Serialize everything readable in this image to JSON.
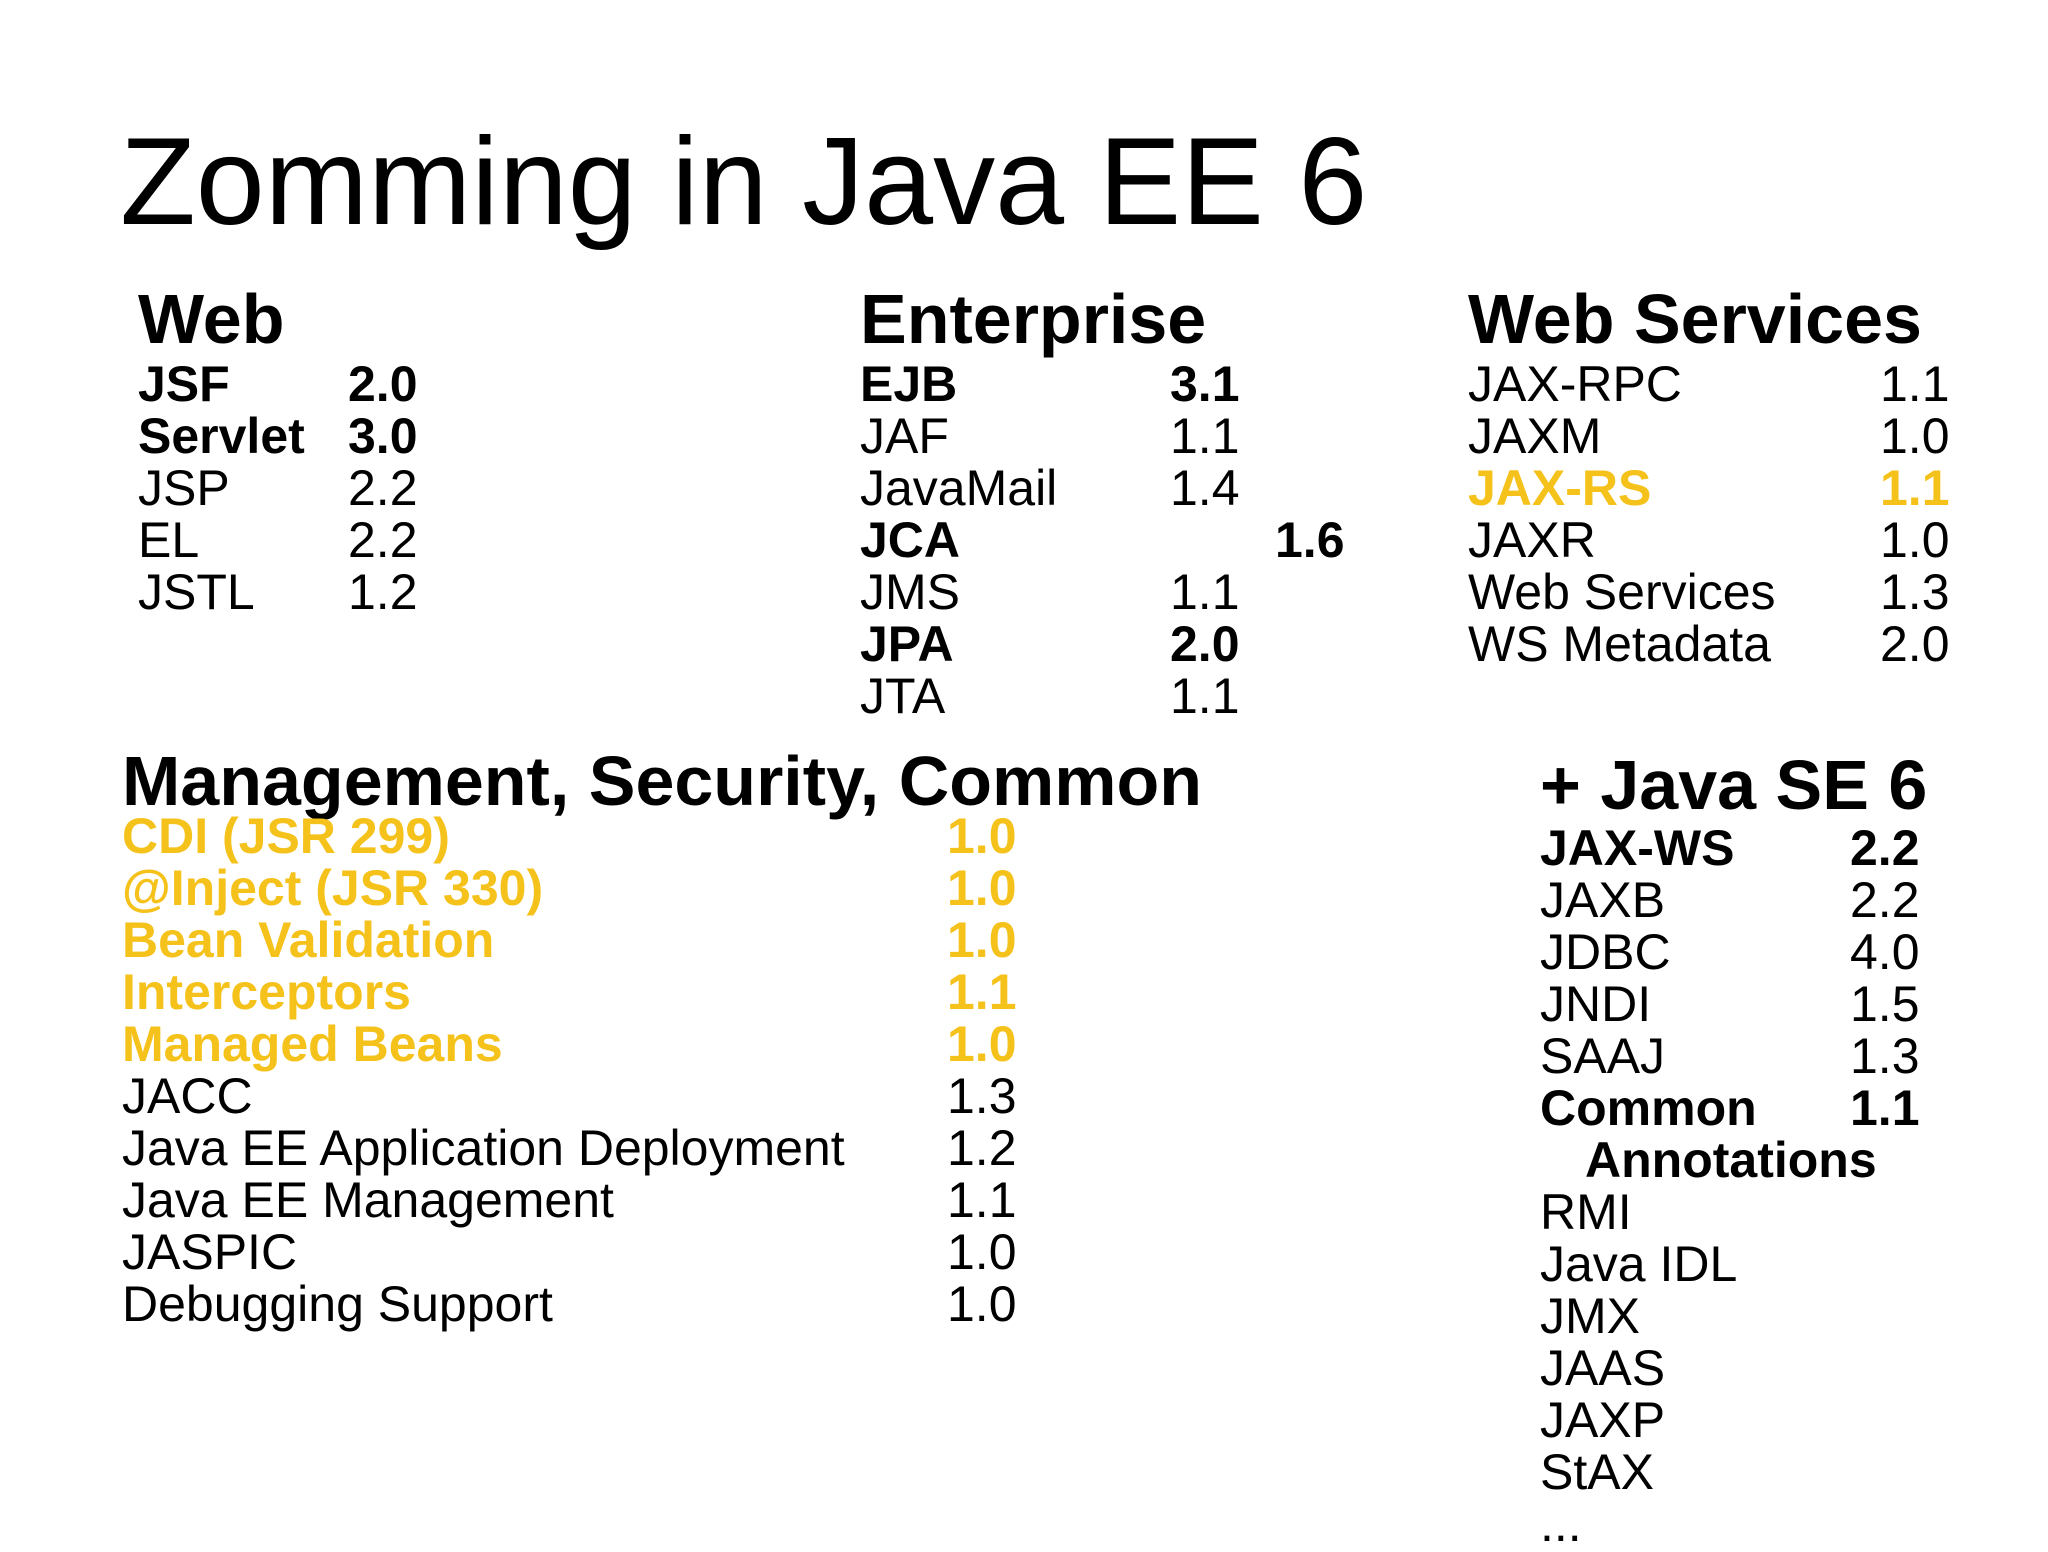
{
  "title": "Zomming in Java EE 6",
  "colors": {
    "highlight": "#f5c21b",
    "text": "#000000"
  },
  "sections": {
    "web": {
      "title": "Web",
      "rows": [
        {
          "name": "JSF",
          "version": "2.0",
          "style": "bold"
        },
        {
          "name": "Servlet",
          "version": "3.0",
          "style": "bold"
        },
        {
          "name": "JSP",
          "version": "2.2",
          "style": "normal"
        },
        {
          "name": "EL",
          "version": "2.2",
          "style": "normal"
        },
        {
          "name": "JSTL",
          "version": "1.2",
          "style": "normal"
        }
      ]
    },
    "enterprise": {
      "title": "Enterprise",
      "rows": [
        {
          "name": "EJB",
          "version": "3.1",
          "style": "bold"
        },
        {
          "name": "JAF",
          "version": "1.1",
          "style": "normal"
        },
        {
          "name": "JavaMail",
          "version": "1.4",
          "style": "normal"
        },
        {
          "name": "JCA",
          "version": "1.6",
          "style": "bold",
          "offset": true
        },
        {
          "name": "JMS",
          "version": "1.1",
          "style": "normal"
        },
        {
          "name": "JPA",
          "version": "2.0",
          "style": "bold"
        },
        {
          "name": "JTA",
          "version": "1.1",
          "style": "normal"
        }
      ]
    },
    "webservices": {
      "title": "Web Services",
      "rows": [
        {
          "name": "JAX-RPC",
          "version": "1.1",
          "style": "normal"
        },
        {
          "name": "JAXM",
          "version": "1.0",
          "style": "normal"
        },
        {
          "name": "JAX-RS",
          "version": "1.1",
          "style": "highlight"
        },
        {
          "name": "JAXR",
          "version": "1.0",
          "style": "normal"
        },
        {
          "name": "Web Services",
          "version": "1.3",
          "style": "normal"
        },
        {
          "name": "WS Metadata",
          "version": "2.0",
          "style": "normal"
        }
      ]
    },
    "management": {
      "title": "Management, Security, Common",
      "rows": [
        {
          "name": "CDI (JSR 299)",
          "version": "1.0",
          "style": "highlight"
        },
        {
          "name": "@Inject  (JSR 330)",
          "version": "1.0",
          "style": "highlight"
        },
        {
          "name": "Bean Validation",
          "version": "1.0",
          "style": "highlight"
        },
        {
          "name": "Interceptors",
          "version": "1.1",
          "style": "highlight"
        },
        {
          "name": "Managed Beans",
          "version": "1.0",
          "style": "highlight"
        },
        {
          "name": "JACC",
          "version": "1.3",
          "style": "normal"
        },
        {
          "name": "Java EE Application Deployment",
          "version": "1.2",
          "style": "normal"
        },
        {
          "name": "Java EE Management",
          "version": "1.1",
          "style": "normal"
        },
        {
          "name": "JASPIC",
          "version": "1.0",
          "style": "normal"
        },
        {
          "name": "Debugging Support",
          "version": "1.0",
          "style": "normal"
        }
      ]
    },
    "javase": {
      "title": "+ Java SE 6",
      "rows": [
        {
          "name": "JAX-WS",
          "version": "2.2",
          "style": "bold"
        },
        {
          "name": "JAXB",
          "version": "2.2",
          "style": "normal"
        },
        {
          "name": "JDBC",
          "version": "4.0",
          "style": "normal"
        },
        {
          "name": "JNDI",
          "version": "1.5",
          "style": "normal"
        },
        {
          "name": "SAAJ",
          "version": "1.3",
          "style": "normal"
        },
        {
          "name": "Common",
          "version": "1.1",
          "style": "bold"
        },
        {
          "name": "Annotations",
          "version": "",
          "style": "bold",
          "sub": true
        },
        {
          "name": "RMI",
          "version": "",
          "style": "normal"
        },
        {
          "name": "Java IDL",
          "version": "",
          "style": "normal"
        },
        {
          "name": "JMX",
          "version": "",
          "style": "normal"
        },
        {
          "name": "JAAS",
          "version": "",
          "style": "normal"
        },
        {
          "name": "JAXP",
          "version": "",
          "style": "normal"
        },
        {
          "name": "StAX",
          "version": "",
          "style": "normal"
        },
        {
          "name": "...",
          "version": "",
          "style": "normal"
        }
      ]
    }
  }
}
